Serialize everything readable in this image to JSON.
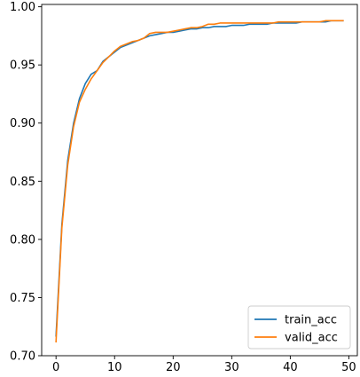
{
  "chart_data": {
    "type": "line",
    "title": "",
    "xlabel": "",
    "ylabel": "",
    "xlim": [
      -2.45,
      51.45
    ],
    "ylim": [
      0.7,
      1.002
    ],
    "xticks": [
      0,
      10,
      20,
      30,
      40,
      50
    ],
    "xtick_labels": [
      "0",
      "10",
      "20",
      "30",
      "40",
      "50"
    ],
    "yticks": [
      0.7,
      0.75,
      0.8,
      0.85,
      0.9,
      0.95,
      1.0
    ],
    "ytick_labels": [
      "0.70",
      "0.75",
      "0.80",
      "0.85",
      "0.90",
      "0.95",
      "1.00"
    ],
    "grid": false,
    "legend_position": "lower right",
    "x": [
      0,
      1,
      2,
      3,
      4,
      5,
      6,
      7,
      8,
      9,
      10,
      11,
      12,
      13,
      14,
      15,
      16,
      17,
      18,
      19,
      20,
      21,
      22,
      23,
      24,
      25,
      26,
      27,
      28,
      29,
      30,
      31,
      32,
      33,
      34,
      35,
      36,
      37,
      38,
      39,
      40,
      41,
      42,
      43,
      44,
      45,
      46,
      47,
      48,
      49
    ],
    "series": [
      {
        "name": "train_acc",
        "color": "#1f77b4",
        "values": [
          0.717,
          0.813,
          0.868,
          0.9,
          0.921,
          0.934,
          0.942,
          0.945,
          0.953,
          0.957,
          0.961,
          0.965,
          0.967,
          0.969,
          0.971,
          0.973,
          0.975,
          0.976,
          0.977,
          0.978,
          0.978,
          0.979,
          0.98,
          0.981,
          0.981,
          0.982,
          0.982,
          0.983,
          0.983,
          0.983,
          0.984,
          0.984,
          0.984,
          0.985,
          0.985,
          0.985,
          0.985,
          0.986,
          0.986,
          0.986,
          0.986,
          0.986,
          0.987,
          0.987,
          0.987,
          0.987,
          0.987,
          0.988,
          0.988,
          0.988
        ]
      },
      {
        "name": "valid_acc",
        "color": "#ff7f0e",
        "values": [
          0.712,
          0.81,
          0.864,
          0.897,
          0.918,
          0.929,
          0.938,
          0.945,
          0.952,
          0.957,
          0.962,
          0.966,
          0.968,
          0.97,
          0.971,
          0.973,
          0.977,
          0.978,
          0.978,
          0.978,
          0.979,
          0.98,
          0.981,
          0.982,
          0.982,
          0.983,
          0.985,
          0.985,
          0.986,
          0.986,
          0.986,
          0.986,
          0.986,
          0.986,
          0.986,
          0.986,
          0.986,
          0.986,
          0.987,
          0.987,
          0.987,
          0.987,
          0.987,
          0.987,
          0.987,
          0.987,
          0.988,
          0.988,
          0.988,
          0.988
        ]
      }
    ]
  }
}
